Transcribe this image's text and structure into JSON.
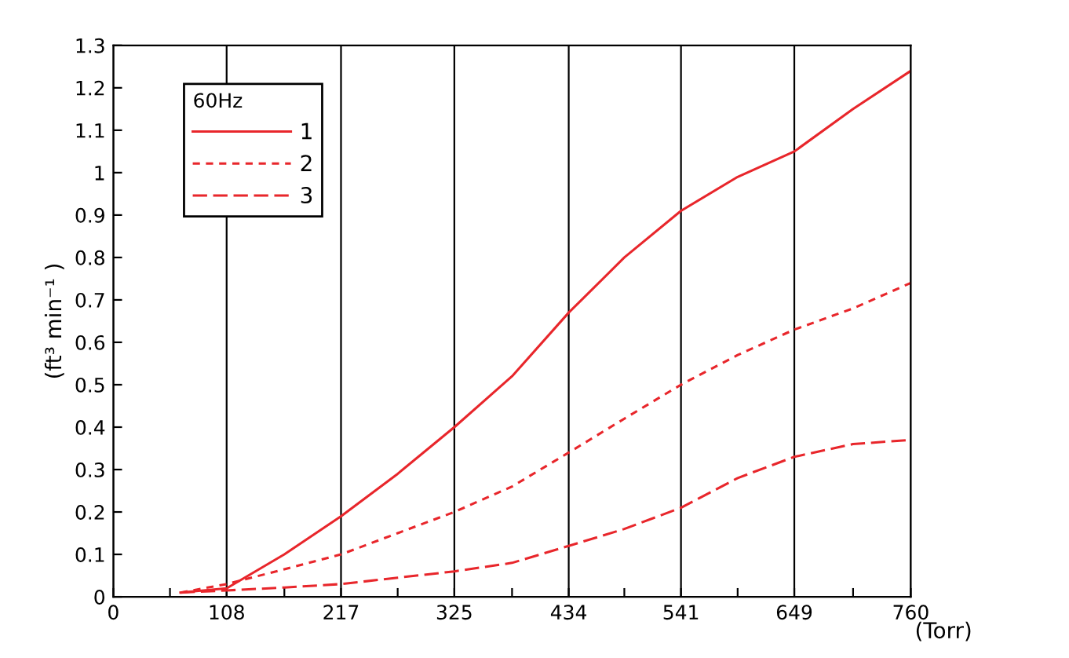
{
  "chart_data": {
    "type": "line",
    "ylabel": "(ft³ min⁻¹ )",
    "xlabel": "(Torr)",
    "legend_title": "60Hz",
    "x": [
      64,
      108,
      163,
      217,
      271,
      325,
      380,
      434,
      487,
      541,
      595,
      649,
      705,
      760
    ],
    "series": [
      {
        "name": "1",
        "color": "#e8262b",
        "line_style": "solid",
        "values": [
          0.01,
          0.02,
          0.1,
          0.19,
          0.29,
          0.4,
          0.52,
          0.67,
          0.8,
          0.91,
          0.99,
          1.05,
          1.15,
          1.24
        ]
      },
      {
        "name": "2",
        "color": "#e8262b",
        "line_style": "dashed",
        "values": [
          0.01,
          0.03,
          0.065,
          0.1,
          0.15,
          0.2,
          0.26,
          0.34,
          0.42,
          0.5,
          0.57,
          0.63,
          0.68,
          0.74
        ]
      },
      {
        "name": "3",
        "color": "#e8262b",
        "line_style": "dashed",
        "values": [
          0.01,
          0.015,
          0.022,
          0.03,
          0.045,
          0.06,
          0.08,
          0.12,
          0.16,
          0.21,
          0.28,
          0.33,
          0.36,
          0.37
        ]
      }
    ],
    "xlim": [
      0,
      760
    ],
    "ylim": [
      0,
      1.3
    ],
    "xticks": [
      0,
      {
        "value": 54,
        "label": null
      },
      108,
      {
        "value": 163,
        "label": null
      },
      217,
      {
        "value": 271,
        "label": null
      },
      325,
      {
        "value": 380,
        "label": null
      },
      434,
      {
        "value": 487,
        "label": null
      },
      541,
      {
        "value": 595,
        "label": null
      },
      649,
      {
        "value": 705,
        "label": null
      },
      760
    ],
    "yticks": [
      0,
      0.1,
      0.2,
      0.3,
      0.4,
      0.5,
      0.6,
      0.7,
      0.8,
      0.9,
      1,
      1.1,
      1.2,
      1.3
    ],
    "grid": "x",
    "legend": "top left",
    "marker": "none"
  }
}
